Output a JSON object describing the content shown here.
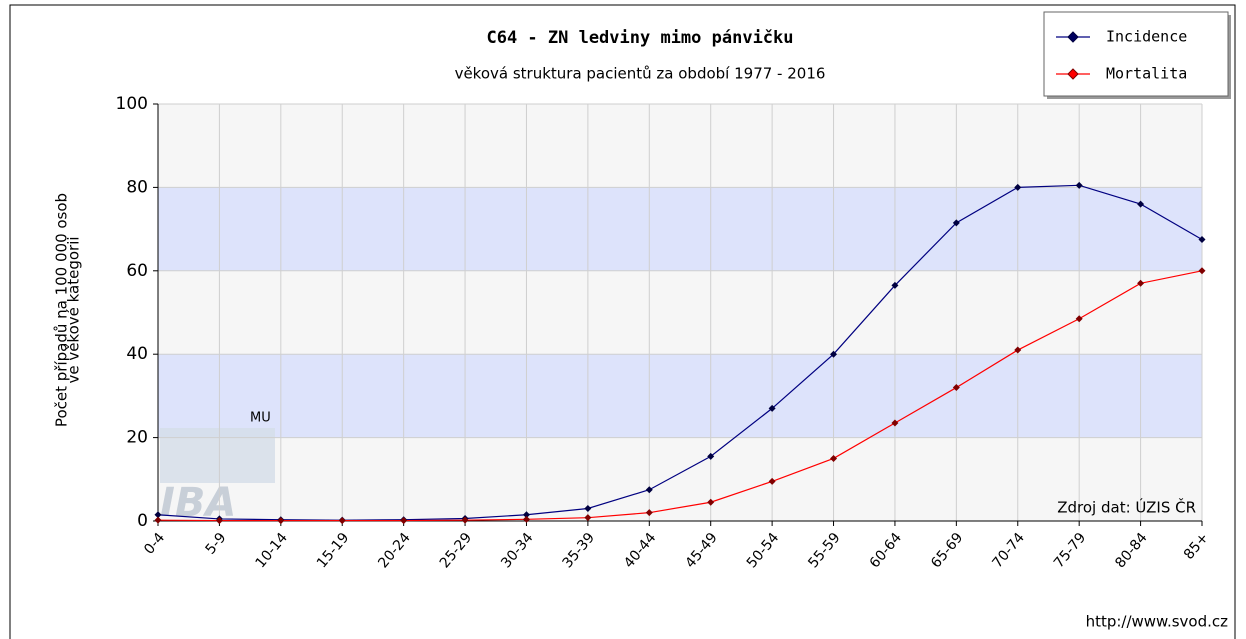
{
  "chart_data": {
    "type": "line",
    "title": "C64 - ZN ledviny mimo pánvičku",
    "subtitle": "věková struktura pacientů za období 1977 - 2016",
    "y_label": [
      "Počet případů na 100 000 osob",
      "ve věkové kategorii"
    ],
    "categories": [
      "0-4",
      "5-9",
      "10-14",
      "15-19",
      "20-24",
      "25-29",
      "30-34",
      "35-39",
      "40-44",
      "45-49",
      "50-54",
      "55-59",
      "60-64",
      "65-69",
      "70-74",
      "75-79",
      "80-84",
      "85+"
    ],
    "series": [
      {
        "name": "Incidence",
        "color": "#000080",
        "values": [
          1.5,
          0.5,
          0.3,
          0.2,
          0.3,
          0.6,
          1.5,
          3,
          7.5,
          15.5,
          27,
          40,
          56.5,
          71.5,
          80,
          80.5,
          76,
          67.5
        ]
      },
      {
        "name": "Mortalita",
        "color": "#ff0000",
        "values": [
          0.2,
          0.1,
          0.1,
          0.1,
          0.1,
          0.2,
          0.4,
          0.8,
          2,
          4.5,
          9.5,
          15,
          23.5,
          32,
          41,
          48.5,
          57,
          60
        ]
      }
    ],
    "ylim": [
      0,
      100
    ],
    "yticks": [
      0,
      20,
      40,
      60,
      80,
      100
    ],
    "grid": true,
    "legend": "top-right",
    "source": "Zdroj dat: ÚZIS ČR",
    "url": "http://www.svod.cz",
    "watermark": {
      "top": "MU",
      "main": "IBA"
    }
  }
}
